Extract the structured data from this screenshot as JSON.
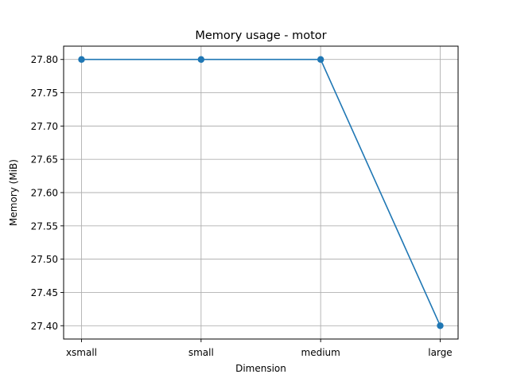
{
  "chart_data": {
    "type": "line",
    "title": "Memory usage - motor",
    "xlabel": "Dimension",
    "ylabel": "Memory (MiB)",
    "categories": [
      "xsmall",
      "small",
      "medium",
      "large"
    ],
    "series": [
      {
        "values": [
          27.8,
          27.8,
          27.8,
          27.4
        ],
        "color": "#1f77b4",
        "marker": "circle"
      }
    ],
    "ylim": [
      27.38,
      27.82
    ],
    "yticks": [
      "27.40",
      "27.45",
      "27.50",
      "27.55",
      "27.60",
      "27.65",
      "27.70",
      "27.75",
      "27.80"
    ],
    "grid": true,
    "legend": "none"
  }
}
